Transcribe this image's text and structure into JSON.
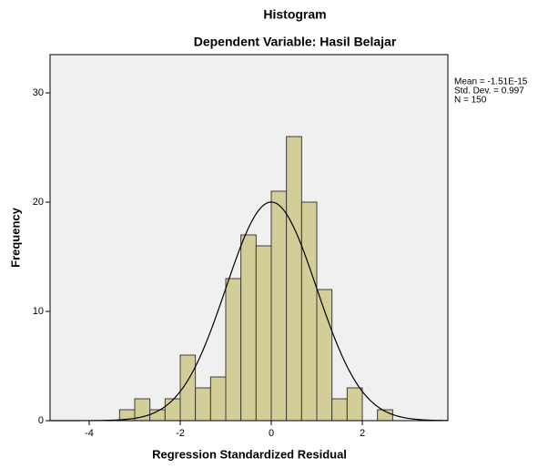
{
  "chart_data": {
    "type": "histogram",
    "title": "Histogram",
    "subtitle": "Dependent Variable: Hasil Belajar",
    "x_label": "Regression Standardized Residual",
    "y_label": "Frequency",
    "bins": [
      -3.333,
      -3,
      -2.667,
      -2.333,
      -2,
      -1.667,
      -1.333,
      -1,
      -0.667,
      -0.333,
      0,
      0.333,
      0.667,
      1,
      1.333,
      1.667,
      2,
      2.333,
      2.667
    ],
    "counts": [
      1,
      2,
      1,
      2,
      6,
      3,
      4,
      13,
      17,
      16,
      21,
      26,
      20,
      12,
      2,
      3,
      0,
      1
    ],
    "color": "#d3ce97",
    "xlim": [
      -4.86,
      3.88
    ],
    "xticks": [
      -4,
      -2,
      0,
      2
    ],
    "ylim": [
      0,
      33.5
    ],
    "yticks": [
      0,
      10,
      20,
      30
    ],
    "stats": [
      {
        "value": -1.51e-15,
        "label": "Mean = -1.51E-15"
      },
      {
        "value": 0.997,
        "label": "Std. Dev. = 0.997"
      },
      {
        "value": 150,
        "label": "N = 150"
      }
    ],
    "normal_curve": true
  }
}
